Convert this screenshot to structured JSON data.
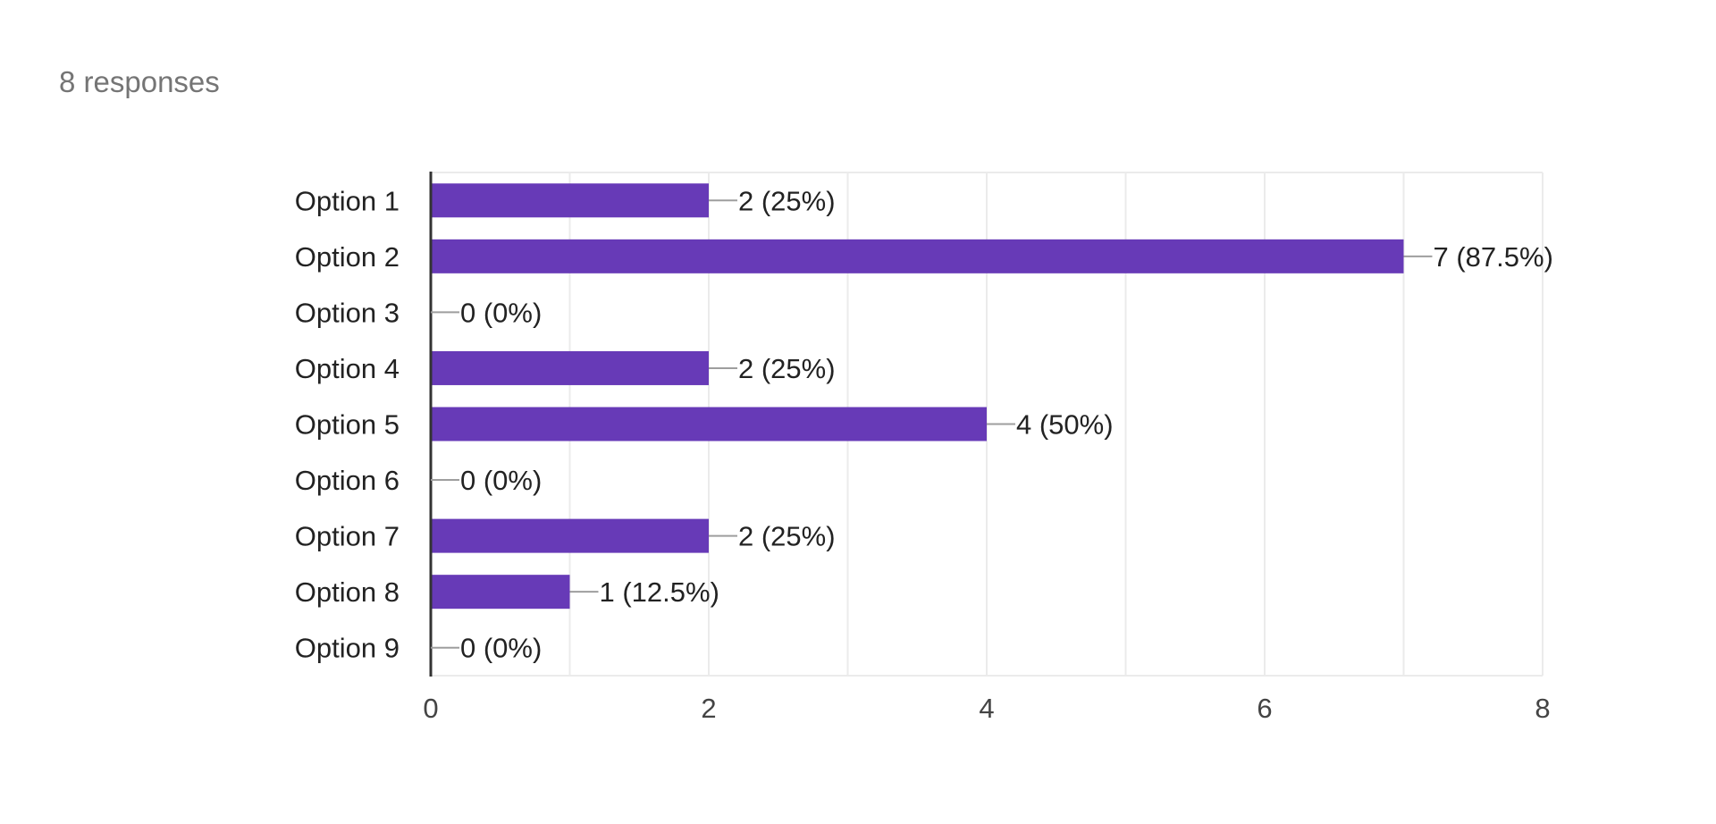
{
  "summary": {
    "responses_text": "8 responses"
  },
  "chart_data": {
    "type": "bar",
    "orientation": "horizontal",
    "categories": [
      "Option 1",
      "Option 2",
      "Option 3",
      "Option 4",
      "Option 5",
      "Option 6",
      "Option 7",
      "Option 8",
      "Option 9"
    ],
    "values": [
      2,
      7,
      0,
      2,
      4,
      0,
      2,
      1,
      0
    ],
    "data_labels": [
      "2 (25%)",
      "7 (87.5%)",
      "0 (0%)",
      "2 (25%)",
      "4 (50%)",
      "0 (0%)",
      "2 (25%)",
      "1 (12.5%)",
      "0 (0%)"
    ],
    "xlim": [
      0,
      8
    ],
    "x_ticks": [
      0,
      2,
      4,
      6,
      8
    ],
    "gridlines": [
      0,
      1,
      2,
      3,
      4,
      5,
      6,
      7,
      8
    ],
    "grid": true,
    "legend": "none",
    "bar_color": "#673ab7",
    "grid_color": "#ebebeb",
    "axis_color": "#333333",
    "leader_color": "#9e9e9e",
    "text_color": "#222222",
    "tick_text_color": "#444444"
  }
}
